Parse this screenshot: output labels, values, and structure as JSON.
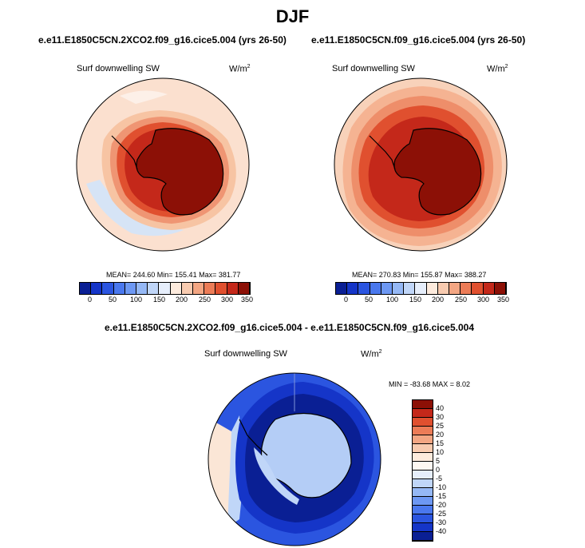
{
  "figure": {
    "season": "DJF",
    "variable_label": "Surf downwelling SW",
    "units": "W/m",
    "units_exp": "2"
  },
  "panels": [
    {
      "case": "e.e11.E1850C5CN.2XCO2.f09_g16.cice5.004 (yrs 26-50)",
      "stats": "MEAN= 244.60  Min= 155.41  Max= 381.77"
    },
    {
      "case": "e.e11.E1850C5CN.f09_g16.cice5.004 (yrs 26-50)",
      "stats": "MEAN= 270.83  Min= 155.87  Max= 388.27"
    }
  ],
  "diff": {
    "title": "e.e11.E1850C5CN.2XCO2.f09_g16.cice5.004 - e.e11.E1850C5CN.f09_g16.cice5.004",
    "stats": "MIN = -83.68 MAX =  8.02"
  },
  "colorbar_abs": {
    "ticks": [
      "0",
      "50",
      "100",
      "150",
      "200",
      "250",
      "300",
      "350"
    ],
    "colors": [
      "#0a1f94",
      "#1535c8",
      "#2b55e0",
      "#4a78ee",
      "#6d98f3",
      "#95b8f5",
      "#c0d6f8",
      "#e6eefb",
      "#fdebdd",
      "#f8cbb0",
      "#f3a683",
      "#ec7c57",
      "#e0502f",
      "#c4281a",
      "#8c1006"
    ]
  },
  "colorbar_diff": {
    "ticks": [
      "40",
      "30",
      "25",
      "20",
      "15",
      "10",
      "5",
      "0",
      "-5",
      "-10",
      "-15",
      "-20",
      "-25",
      "-30",
      "-40"
    ],
    "colors": [
      "#8c1006",
      "#c4281a",
      "#e0502f",
      "#ec7c57",
      "#f3a683",
      "#f8cbb0",
      "#fdebdd",
      "#fef8f2",
      "#e6eefb",
      "#c0d6f8",
      "#95b8f5",
      "#6d98f3",
      "#4a78ee",
      "#2b55e0",
      "#1535c8",
      "#0a1f94"
    ]
  }
}
